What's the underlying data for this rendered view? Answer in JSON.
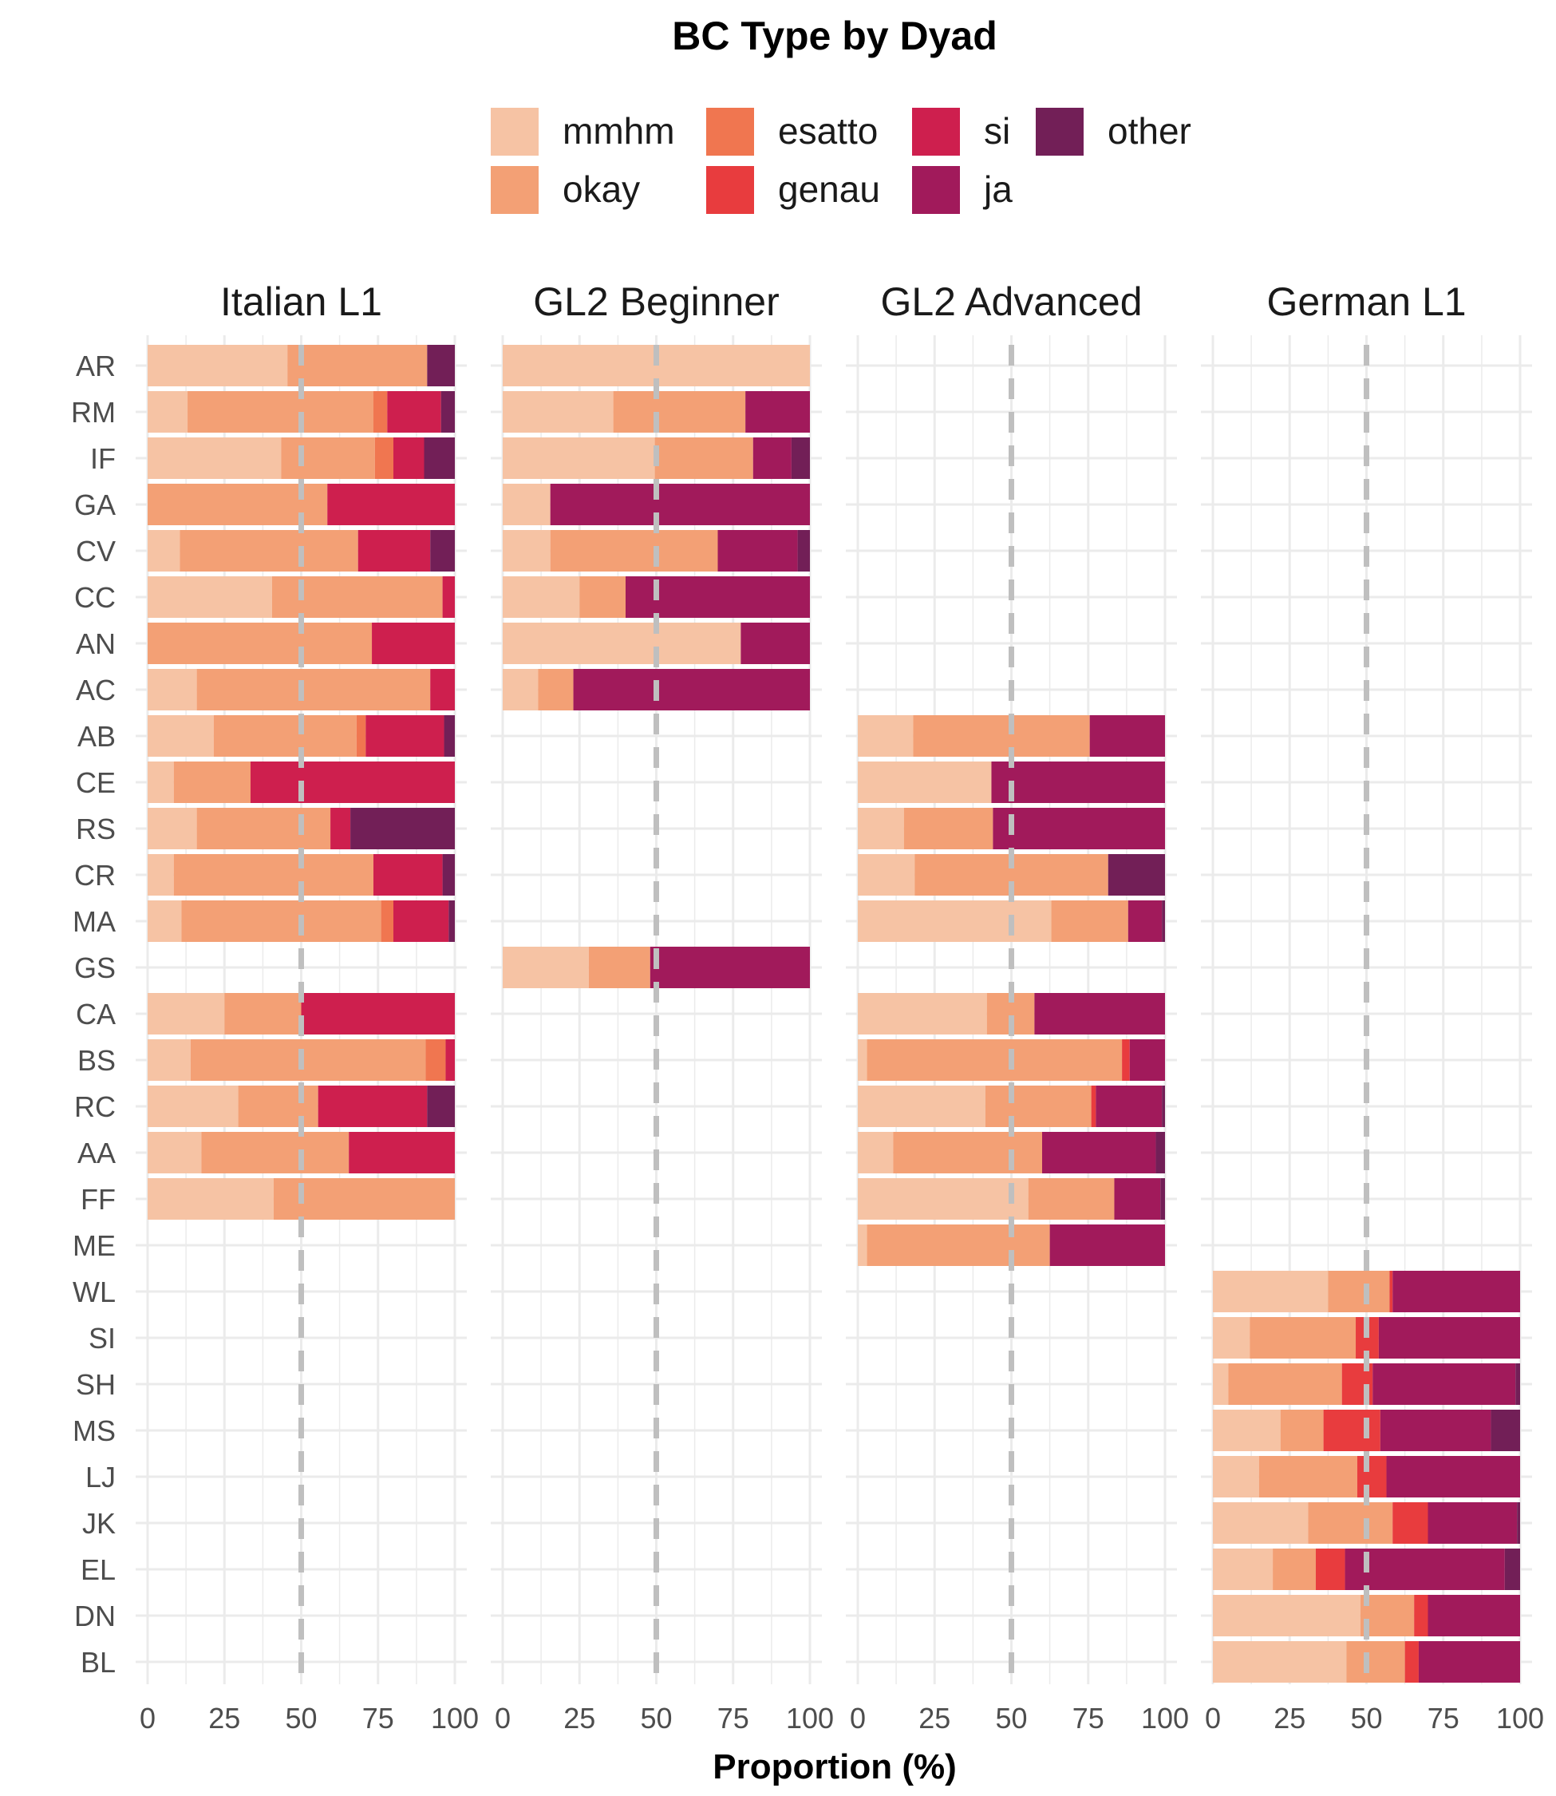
{
  "chart_data": {
    "type": "bar",
    "orientation": "horizontal",
    "stacked": true,
    "title": "BC Type by Dyad",
    "xlabel": "Proportion (%)",
    "ylabel": "",
    "xlim": [
      0,
      100
    ],
    "xticks": [
      "0",
      "25",
      "50",
      "75",
      "100"
    ],
    "reference_line": {
      "x": 50,
      "style": "dashed",
      "color": "#bfbfbf"
    },
    "grid": true,
    "legend_position": "top",
    "legend": [
      {
        "name": "mmhm",
        "color": "#F6C3A4"
      },
      {
        "name": "okay",
        "color": "#F3A075"
      },
      {
        "name": "esatto",
        "color": "#F07650"
      },
      {
        "name": "genau",
        "color": "#E83C3E"
      },
      {
        "name": "si",
        "color": "#CE1F4E"
      },
      {
        "name": "ja",
        "color": "#A11A5B"
      },
      {
        "name": "other",
        "color": "#721F57"
      }
    ],
    "categories": [
      "AR",
      "RM",
      "IF",
      "GA",
      "CV",
      "CC",
      "AN",
      "AC",
      "AB",
      "CE",
      "RS",
      "CR",
      "MA",
      "GS",
      "CA",
      "BS",
      "RC",
      "AA",
      "FF",
      "ME",
      "WL",
      "SI",
      "SH",
      "MS",
      "LJ",
      "JK",
      "EL",
      "DN",
      "BL"
    ],
    "series_order": [
      "mmhm",
      "okay",
      "esatto",
      "genau",
      "si",
      "ja",
      "other"
    ],
    "facets": [
      {
        "label": "Italian L1",
        "data": {
          "AR": [
            45.5,
            45.5,
            0,
            0,
            0,
            0,
            9
          ],
          "RM": [
            13,
            60.5,
            4.5,
            0,
            17.5,
            0,
            4.5
          ],
          "IF": [
            43.5,
            30.5,
            6,
            0,
            10,
            0,
            10
          ],
          "GA": [
            0,
            58.5,
            0,
            0,
            41.5,
            0,
            0
          ],
          "CV": [
            10.5,
            58,
            0,
            0,
            23.5,
            0,
            8
          ],
          "CC": [
            40.5,
            55.5,
            0,
            0,
            4,
            0,
            0
          ],
          "AN": [
            0,
            73,
            0,
            0,
            27,
            0,
            0
          ],
          "AC": [
            16,
            76,
            0,
            0,
            8,
            0,
            0
          ],
          "AB": [
            21.5,
            46.5,
            3,
            0,
            25.5,
            0,
            3.5
          ],
          "CE": [
            8.5,
            25,
            0,
            0,
            66.5,
            0,
            0
          ],
          "RS": [
            16,
            43.5,
            0,
            0,
            6.5,
            0,
            34
          ],
          "CR": [
            8.5,
            65,
            0,
            0,
            22.5,
            0,
            4
          ],
          "MA": [
            11,
            65,
            4,
            0,
            18,
            0,
            2
          ],
          "CA": [
            25,
            25,
            0,
            0,
            50,
            0,
            0
          ],
          "BS": [
            14,
            76.5,
            6.5,
            0,
            3,
            0,
            0
          ],
          "RC": [
            29.5,
            26,
            0,
            0,
            35.5,
            0,
            9
          ],
          "AA": [
            17.5,
            48,
            0,
            0,
            34.5,
            0,
            0
          ],
          "FF": [
            41,
            59,
            0,
            0,
            0,
            0,
            0
          ]
        }
      },
      {
        "label": "GL2 Beginner",
        "data": {
          "AR": [
            100,
            0,
            0,
            0,
            0,
            0,
            0
          ],
          "RM": [
            36,
            43,
            0,
            0,
            0,
            21,
            0
          ],
          "IF": [
            49.5,
            32,
            0,
            0,
            0,
            12.5,
            6
          ],
          "GA": [
            15.5,
            0,
            0,
            0,
            0,
            84.5,
            0
          ],
          "CV": [
            15.5,
            54.5,
            0,
            0,
            0,
            26,
            4
          ],
          "CC": [
            25,
            15,
            0,
            0,
            0,
            60,
            0
          ],
          "AN": [
            77.5,
            0,
            0,
            0,
            0,
            22.5,
            0
          ],
          "AC": [
            11.5,
            11.5,
            0,
            0,
            0,
            77,
            0
          ],
          "GS": [
            28,
            20,
            0,
            0,
            0,
            52,
            0
          ]
        }
      },
      {
        "label": "GL2 Advanced",
        "data": {
          "AB": [
            18,
            57.5,
            0,
            0,
            0,
            24.5,
            0
          ],
          "CE": [
            43.5,
            0,
            0,
            0,
            0,
            56.5,
            0
          ],
          "RS": [
            15,
            29,
            0,
            0,
            0,
            56,
            0
          ],
          "CR": [
            18.5,
            63,
            0,
            0,
            0,
            0,
            18.5
          ],
          "MA": [
            63,
            25,
            0,
            0,
            0,
            11,
            1
          ],
          "CA": [
            42,
            15.5,
            0,
            0,
            0,
            42.5,
            0
          ],
          "BS": [
            3,
            83,
            0,
            2.5,
            0,
            11.5,
            0
          ],
          "RC": [
            41.5,
            34.5,
            0,
            1.5,
            0,
            21.5,
            1
          ],
          "AA": [
            11.5,
            48.5,
            0,
            0,
            0,
            37,
            3
          ],
          "FF": [
            55.5,
            28,
            0,
            0,
            0,
            15,
            1.5
          ],
          "ME": [
            3,
            59.5,
            0,
            0,
            0,
            37.5,
            0
          ]
        }
      },
      {
        "label": "German L1",
        "data": {
          "WL": [
            37.5,
            20,
            0,
            1,
            0,
            41.5,
            0
          ],
          "SI": [
            12,
            34.5,
            0,
            7.5,
            0,
            46,
            0
          ],
          "SH": [
            5,
            37,
            0,
            10,
            0,
            46.5,
            1.5
          ],
          "MS": [
            22,
            14,
            0,
            18.5,
            0,
            36,
            9.5
          ],
          "LJ": [
            15,
            32,
            0,
            9.5,
            0,
            43.5,
            0
          ],
          "JK": [
            31,
            27.5,
            0,
            11.5,
            0,
            29,
            1
          ],
          "EL": [
            19.5,
            14,
            0,
            9.5,
            0,
            52,
            5
          ],
          "DN": [
            48,
            17.5,
            0,
            4.5,
            0,
            30,
            0
          ],
          "BL": [
            43.5,
            19,
            0,
            4.5,
            0,
            33,
            0
          ]
        }
      }
    ]
  }
}
